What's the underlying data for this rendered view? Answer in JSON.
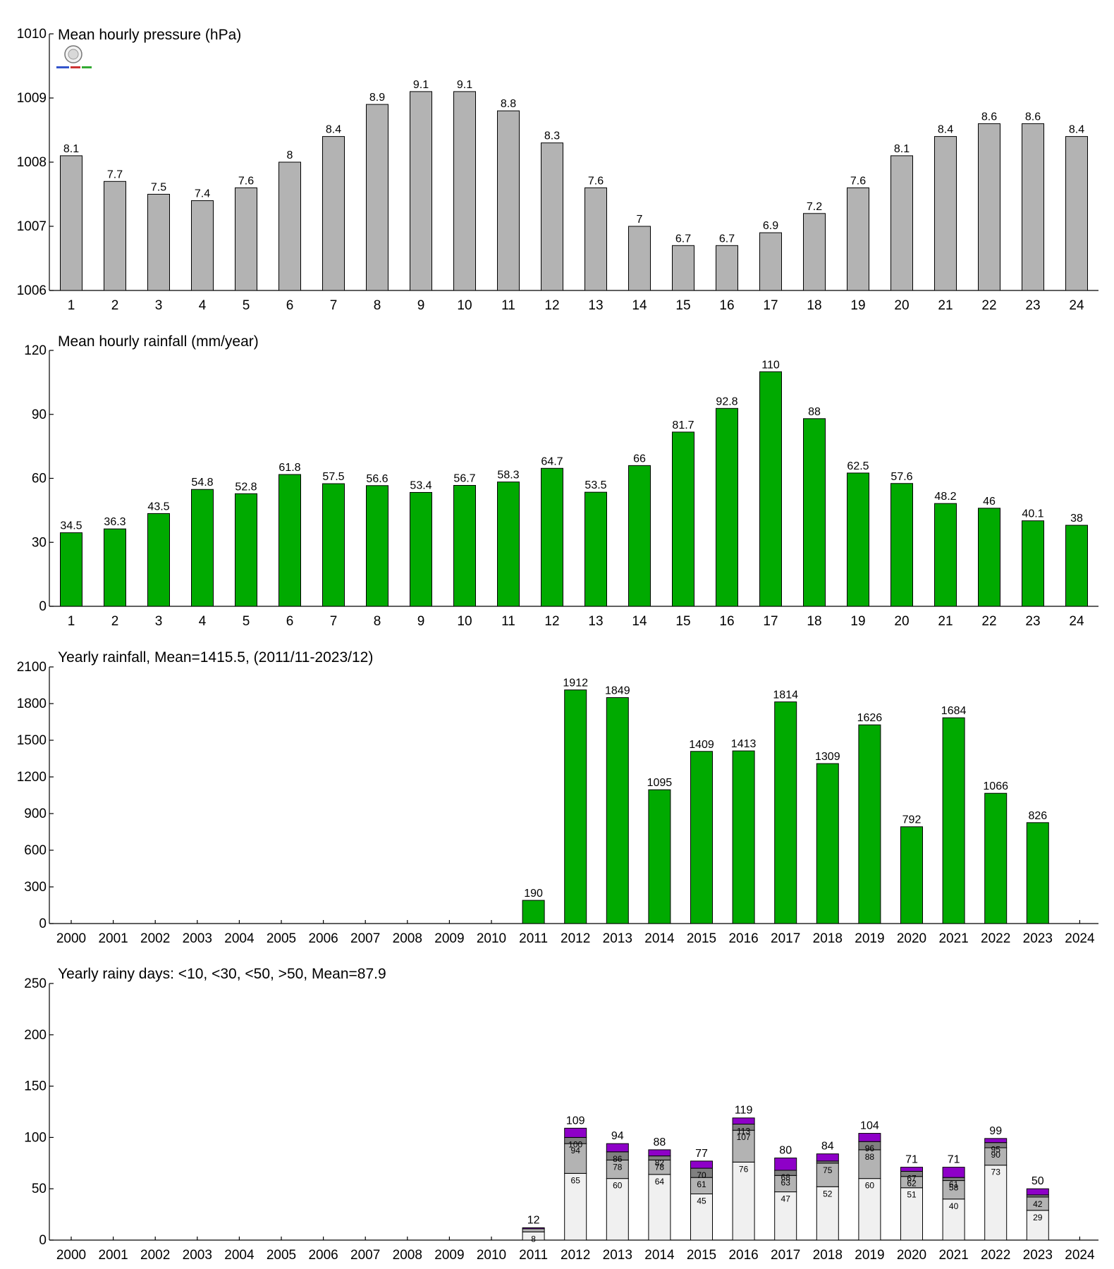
{
  "chart_data": [
    {
      "type": "bar",
      "title": "Mean hourly pressure (hPa)",
      "categories": [
        "1",
        "2",
        "3",
        "4",
        "5",
        "6",
        "7",
        "8",
        "9",
        "10",
        "11",
        "12",
        "13",
        "14",
        "15",
        "16",
        "17",
        "18",
        "19",
        "20",
        "21",
        "22",
        "23",
        "24"
      ],
      "values": [
        1008.1,
        1007.7,
        1007.5,
        1007.4,
        1007.6,
        1008.0,
        1008.4,
        1008.9,
        1009.1,
        1009.1,
        1008.8,
        1008.3,
        1007.6,
        1007.0,
        1006.7,
        1006.7,
        1006.9,
        1007.2,
        1007.6,
        1008.1,
        1008.4,
        1008.6,
        1008.6,
        1008.4
      ],
      "labels": [
        "8.1",
        "7.7",
        "7.5",
        "7.4",
        "7.6",
        "8",
        "8.4",
        "8.9",
        "9.1",
        "9.1",
        "8.8",
        "8.3",
        "7.6",
        "7",
        "6.7",
        "6.7",
        "6.9",
        "7.2",
        "7.6",
        "8.1",
        "8.4",
        "8.6",
        "8.6",
        "8.4"
      ],
      "ylim": [
        1006,
        1010
      ],
      "yticks": [
        1006,
        1007,
        1008,
        1009,
        1010
      ],
      "color": "#b3b3b3",
      "grid": false
    },
    {
      "type": "bar",
      "title": "Mean hourly rainfall (mm/year)",
      "categories": [
        "1",
        "2",
        "3",
        "4",
        "5",
        "6",
        "7",
        "8",
        "9",
        "10",
        "11",
        "12",
        "13",
        "14",
        "15",
        "16",
        "17",
        "18",
        "19",
        "20",
        "21",
        "22",
        "23",
        "24"
      ],
      "values": [
        34.5,
        36.3,
        43.5,
        54.8,
        52.8,
        61.8,
        57.5,
        56.6,
        53.4,
        56.7,
        58.3,
        64.7,
        53.5,
        66,
        81.7,
        92.8,
        110,
        88,
        62.5,
        57.6,
        48.2,
        46,
        40.1,
        38
      ],
      "labels": [
        "34.5",
        "36.3",
        "43.5",
        "54.8",
        "52.8",
        "61.8",
        "57.5",
        "56.6",
        "53.4",
        "56.7",
        "58.3",
        "64.7",
        "53.5",
        "66",
        "81.7",
        "92.8",
        "110",
        "88",
        "62.5",
        "57.6",
        "48.2",
        "46",
        "40.1",
        "38"
      ],
      "ylim": [
        0,
        120
      ],
      "yticks": [
        0,
        30,
        60,
        90,
        120
      ],
      "color": "#00aa00",
      "grid": false
    },
    {
      "type": "bar",
      "title": "Yearly rainfall, Mean=1415.5, (2011/11-2023/12)",
      "categories": [
        "2000",
        "2001",
        "2002",
        "2003",
        "2004",
        "2005",
        "2006",
        "2007",
        "2008",
        "2009",
        "2010",
        "2011",
        "2012",
        "2013",
        "2014",
        "2015",
        "2016",
        "2017",
        "2018",
        "2019",
        "2020",
        "2021",
        "2022",
        "2023",
        "2024"
      ],
      "values": [
        null,
        null,
        null,
        null,
        null,
        null,
        null,
        null,
        null,
        null,
        null,
        190,
        1912,
        1849,
        1095,
        1409,
        1413,
        1814,
        1309,
        1626,
        792,
        1684,
        1066,
        826,
        null
      ],
      "labels": [
        "",
        "",
        "",
        "",
        "",
        "",
        "",
        "",
        "",
        "",
        "",
        "190",
        "1912",
        "1849",
        "1095",
        "1409",
        "1413",
        "1814",
        "1309",
        "1626",
        "792",
        "1684",
        "1066",
        "826",
        ""
      ],
      "ylim": [
        0,
        2100
      ],
      "yticks": [
        0,
        300,
        600,
        900,
        1200,
        1500,
        1800,
        2100
      ],
      "color": "#00aa00",
      "grid": false
    },
    {
      "type": "bar",
      "stacked": true,
      "title": "Yearly rainy days: <10, <30, <50, >50, Mean=87.9",
      "categories": [
        "2000",
        "2001",
        "2002",
        "2003",
        "2004",
        "2005",
        "2006",
        "2007",
        "2008",
        "2009",
        "2010",
        "2011",
        "2012",
        "2013",
        "2014",
        "2015",
        "2016",
        "2017",
        "2018",
        "2019",
        "2020",
        "2021",
        "2022",
        "2023",
        "2024"
      ],
      "ylim": [
        0,
        250
      ],
      "yticks": [
        0,
        50,
        100,
        150,
        200,
        250
      ],
      "colors": [
        "#f0f0f0",
        "#b3b3b3",
        "#808080",
        "#8e00c8"
      ],
      "cumulative": [
        null,
        null,
        null,
        null,
        null,
        null,
        null,
        null,
        null,
        null,
        null,
        [
          8,
          11,
          11,
          12
        ],
        [
          65,
          94,
          100,
          109
        ],
        [
          60,
          78,
          86,
          94
        ],
        [
          64,
          78,
          82,
          88
        ],
        [
          45,
          61,
          70,
          77
        ],
        [
          76,
          107,
          113,
          119
        ],
        [
          47,
          63,
          68,
          80
        ],
        [
          52,
          75,
          77,
          84
        ],
        [
          60,
          88,
          96,
          104
        ],
        [
          51,
          62,
          67,
          71
        ],
        [
          40,
          58,
          61,
          71
        ],
        [
          73,
          90,
          95,
          99
        ],
        [
          29,
          42,
          44,
          50
        ],
        null
      ],
      "segment_labels": [
        null,
        null,
        null,
        null,
        null,
        null,
        null,
        null,
        null,
        null,
        null,
        [
          "8",
          "",
          "",
          ""
        ],
        [
          "65",
          "94",
          "100",
          ""
        ],
        [
          "60",
          "78",
          "86",
          ""
        ],
        [
          "64",
          "78",
          "82",
          ""
        ],
        [
          "45",
          "61",
          "70",
          ""
        ],
        [
          "76",
          "107",
          "113",
          ""
        ],
        [
          "47",
          "63",
          "68",
          ""
        ],
        [
          "52",
          "75",
          "",
          ""
        ],
        [
          "60",
          "88",
          "96",
          ""
        ],
        [
          "51",
          "62",
          "67",
          ""
        ],
        [
          "40",
          "58",
          "61",
          ""
        ],
        [
          "73",
          "90",
          "95",
          ""
        ],
        [
          "29",
          "42",
          "",
          ""
        ],
        null
      ],
      "totals": [
        "",
        "",
        "",
        "",
        "",
        "",
        "",
        "",
        "",
        "",
        "",
        "12",
        "109",
        "94",
        "88",
        "77",
        "119",
        "80",
        "84",
        "104",
        "71",
        "71",
        "99",
        "50",
        ""
      ],
      "grid": false
    }
  ]
}
